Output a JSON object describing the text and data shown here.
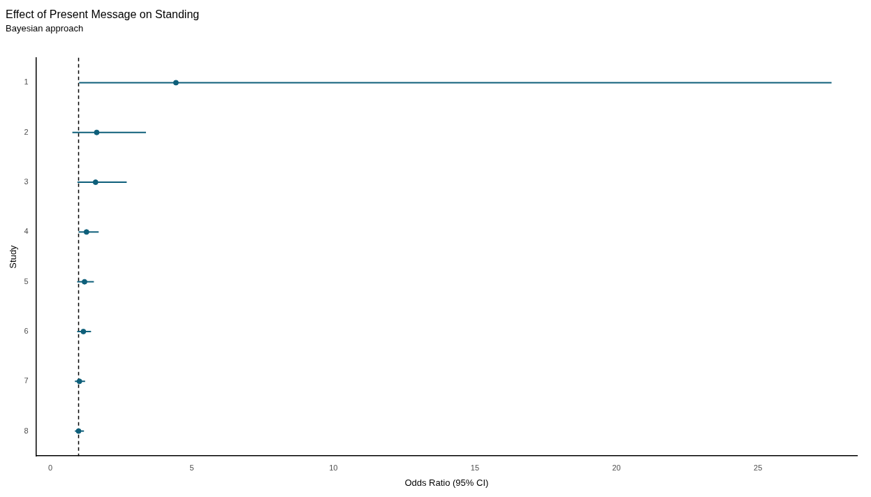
{
  "chart_data": {
    "type": "scatter",
    "orientation": "horizontal",
    "title": "Effect of Present Message on Standing",
    "subtitle": "Bayesian approach",
    "xlabel": "Odds Ratio (95% CI)",
    "ylabel": "Study",
    "categories": [
      "1",
      "2",
      "3",
      "4",
      "5",
      "6",
      "7",
      "8"
    ],
    "series": [
      {
        "color": "#0e5f7a",
        "values": [
          4.44,
          1.64,
          1.6,
          1.28,
          1.21,
          1.17,
          1.03,
          1.0
        ],
        "errors": [
          [
            1.02,
            27.6
          ],
          [
            0.78,
            3.38
          ],
          [
            0.96,
            2.7
          ],
          [
            1.0,
            1.71
          ],
          [
            0.95,
            1.54
          ],
          [
            0.95,
            1.44
          ],
          [
            0.87,
            1.23
          ],
          [
            0.87,
            1.19
          ]
        ]
      }
    ],
    "xlim": [
      -0.5,
      28.5
    ],
    "xticks": [
      0,
      5,
      10,
      15,
      20,
      25
    ],
    "ref_lines": [
      {
        "axis": "x",
        "value": 1,
        "line_style": "dashed",
        "color": "#000000"
      }
    ],
    "grid": false,
    "legend": false,
    "marker": "circle"
  }
}
